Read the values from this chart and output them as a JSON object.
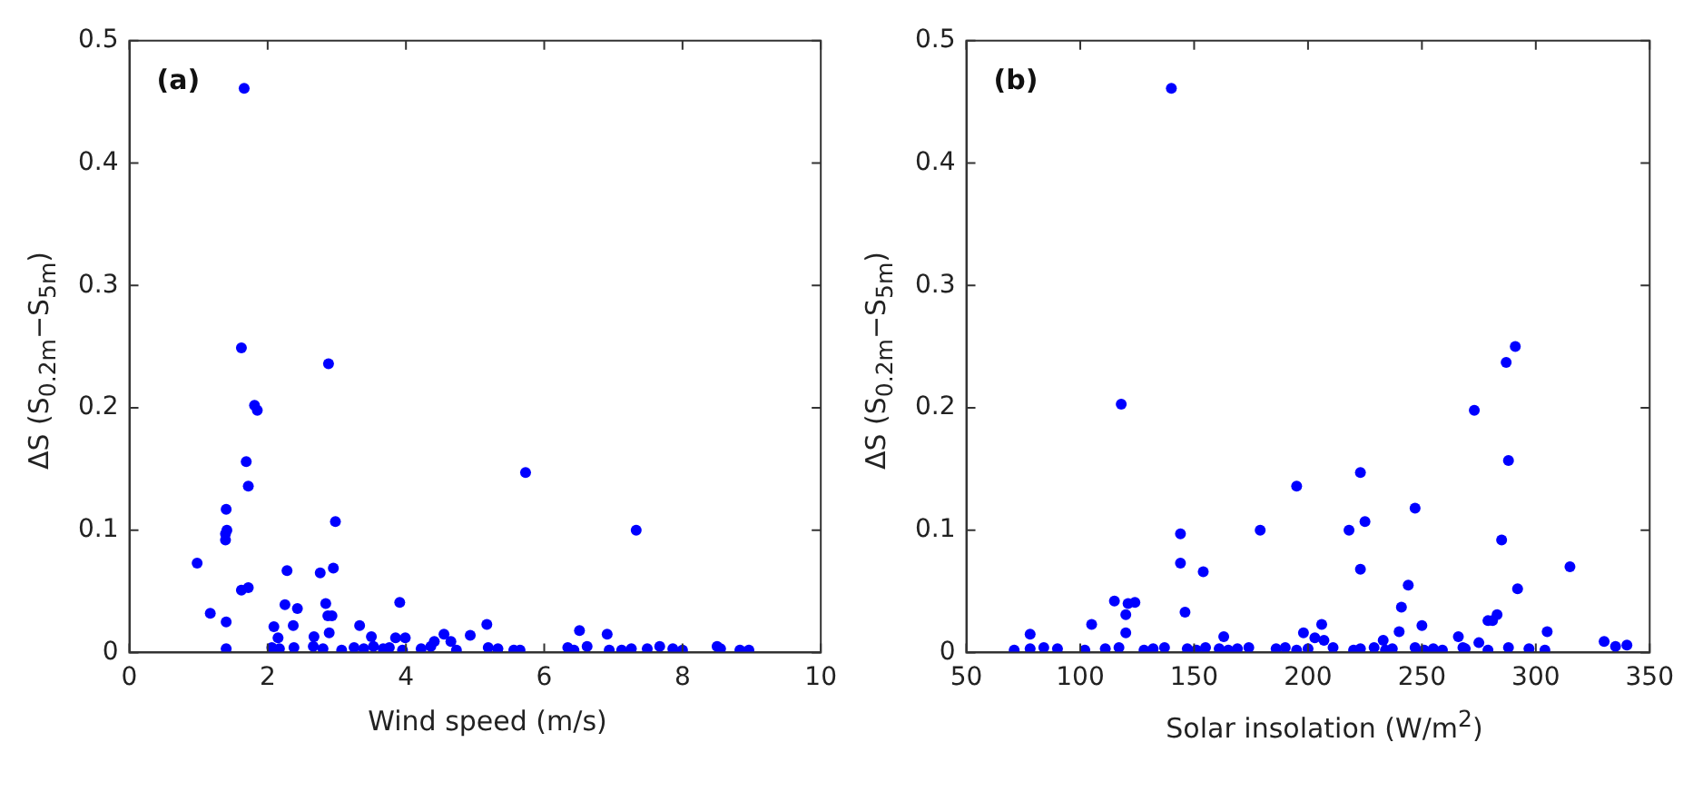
{
  "chart_data": [
    {
      "type": "scatter",
      "xlabel": "Wind speed (m/s)",
      "ylabel": "ΔS (S$_{0.2m}$−S$_{5m}$)",
      "annotations": [
        "(a)"
      ],
      "marker": "circle",
      "xlim": [
        0,
        10
      ],
      "xticks": [
        0,
        2,
        4,
        6,
        8,
        10
      ],
      "ylim": [
        0,
        0.5
      ],
      "yticks": [
        0,
        0.1,
        0.2,
        0.3,
        0.4,
        0.5
      ],
      "series": [
        {
          "color": "#0000ff",
          "x": [
            1.66,
            1.62,
            2.88,
            1.81,
            1.85,
            1.69,
            1.72,
            1.4,
            1.41,
            1.39,
            1.39,
            5.73,
            2.98,
            7.33,
            0.98,
            1.62,
            1.72,
            2.28,
            2.76,
            2.95,
            1.17,
            1.4,
            1.4,
            2.25,
            2.43,
            2.84,
            2.87,
            2.93,
            3.91,
            2.09,
            2.37,
            2.15,
            2.67,
            2.89,
            3.33,
            5.17,
            4.93,
            6.51,
            6.91,
            3.5,
            3.85,
            3.99,
            4.55,
            4.41,
            4.65,
            2.06,
            2.17,
            2.38,
            2.66,
            2.8,
            3.07,
            3.25,
            3.39,
            3.53,
            3.67,
            3.76,
            3.95,
            4.22,
            4.36,
            4.73,
            5.19,
            5.33,
            5.56,
            5.65,
            6.34,
            6.43,
            6.62,
            6.94,
            7.12,
            7.26,
            7.49,
            7.67,
            7.86,
            8.0,
            8.5,
            8.55,
            8.83,
            8.96
          ],
          "values": [
            0.461,
            0.249,
            0.236,
            0.202,
            0.198,
            0.156,
            0.136,
            0.117,
            0.1,
            0.097,
            0.092,
            0.147,
            0.107,
            0.1,
            0.073,
            0.051,
            0.053,
            0.067,
            0.065,
            0.069,
            0.032,
            0.025,
            0.003,
            0.039,
            0.036,
            0.04,
            0.03,
            0.03,
            0.041,
            0.021,
            0.022,
            0.012,
            0.013,
            0.016,
            0.022,
            0.023,
            0.014,
            0.018,
            0.015,
            0.013,
            0.012,
            0.012,
            0.015,
            0.009,
            0.009,
            0.004,
            0.003,
            0.004,
            0.005,
            0.003,
            0.002,
            0.004,
            0.003,
            0.005,
            0.003,
            0.004,
            0.002,
            0.003,
            0.005,
            0.002,
            0.004,
            0.003,
            0.002,
            0.002,
            0.004,
            0.002,
            0.005,
            0.002,
            0.002,
            0.003,
            0.003,
            0.005,
            0.003,
            0.002,
            0.005,
            0.003,
            0.002,
            0.002
          ]
        }
      ]
    },
    {
      "type": "scatter",
      "xlabel": "Solar insolation (W/m$^{2}$)",
      "ylabel": "ΔS (S$_{0.2m}$−S$_{5m}$)",
      "annotations": [
        "(b)"
      ],
      "marker": "circle",
      "xlim": [
        50,
        350
      ],
      "xticks": [
        50,
        100,
        150,
        200,
        250,
        300,
        350
      ],
      "ylim": [
        0,
        0.5
      ],
      "yticks": [
        0,
        0.1,
        0.2,
        0.3,
        0.4,
        0.5
      ],
      "series": [
        {
          "color": "#0000ff",
          "x": [
            140,
            291,
            287,
            118,
            273,
            288,
            195,
            223,
            247,
            225,
            218,
            179,
            144,
            285,
            144,
            154,
            223,
            315,
            292,
            244,
            115,
            121,
            124,
            120,
            146,
            241,
            105,
            206,
            250,
            279,
            281,
            283,
            78,
            120,
            163,
            198,
            240,
            305,
            266,
            233,
            203,
            207,
            330,
            335,
            340,
            275,
            71,
            78,
            84,
            90,
            102,
            111,
            117,
            128,
            132,
            137,
            147,
            151,
            155,
            161,
            165,
            169,
            174,
            186,
            190,
            195,
            200,
            211,
            220,
            223,
            229,
            234,
            237,
            247,
            251,
            255,
            259,
            268,
            269,
            279,
            288,
            297,
            304
          ],
          "values": [
            0.461,
            0.25,
            0.237,
            0.203,
            0.198,
            0.157,
            0.136,
            0.147,
            0.118,
            0.107,
            0.1,
            0.1,
            0.097,
            0.092,
            0.073,
            0.066,
            0.068,
            0.07,
            0.052,
            0.055,
            0.042,
            0.04,
            0.041,
            0.031,
            0.033,
            0.037,
            0.023,
            0.023,
            0.022,
            0.026,
            0.026,
            0.031,
            0.015,
            0.016,
            0.013,
            0.016,
            0.017,
            0.017,
            0.013,
            0.01,
            0.012,
            0.01,
            0.009,
            0.005,
            0.006,
            0.008,
            0.002,
            0.003,
            0.004,
            0.003,
            0.002,
            0.003,
            0.004,
            0.002,
            0.003,
            0.004,
            0.003,
            0.002,
            0.004,
            0.003,
            0.002,
            0.003,
            0.004,
            0.003,
            0.004,
            0.002,
            0.003,
            0.004,
            0.002,
            0.003,
            0.004,
            0.002,
            0.003,
            0.004,
            0.002,
            0.003,
            0.002,
            0.004,
            0.003,
            0.002,
            0.004,
            0.003,
            0.002
          ]
        }
      ]
    }
  ]
}
